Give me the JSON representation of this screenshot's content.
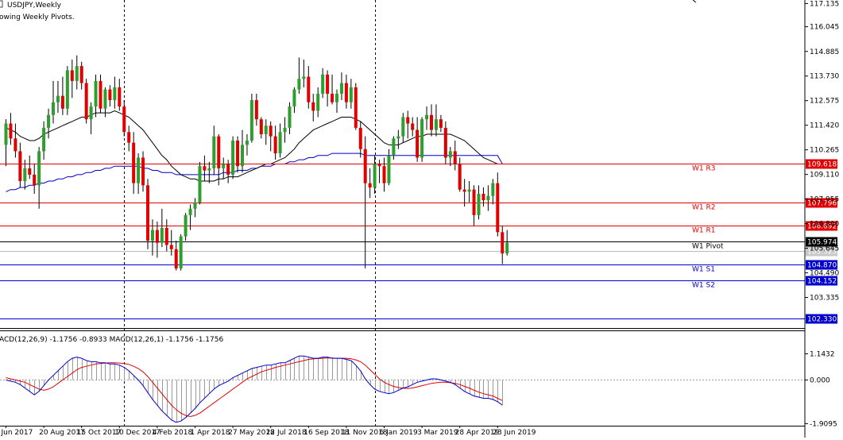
{
  "header": {
    "symbol": "USDJPY,Weekly",
    "indicator_name": "owing Weekly Pivots."
  },
  "macd_header": "ACD(12,26,9) -1.1756 -0.8933 MACD(12,26,1) -1.1756 -1.1756",
  "colors": {
    "bull": "#2e9e2e",
    "bear": "#e00000",
    "wick": "#000000",
    "ma_short": "#000000",
    "ma_long": "#0000cc",
    "resistance": "#e00000",
    "support": "#0000cc",
    "pivot": "#000000",
    "macd_signal": "#e00000",
    "macd_line": "#0000cc",
    "macd_hist": "#999999"
  },
  "chart_data": [
    {
      "type": "candlestick",
      "title": "USDJPY,Weekly",
      "y_axis": {
        "ylim": [
          101.9,
          117.3
        ],
        "ticks": [
          "117.135",
          "116.045",
          "114.885",
          "113.730",
          "112.575",
          "111.420",
          "110.265",
          "109.110",
          "107.955",
          "106.800",
          "105.645",
          "104.490",
          "103.335"
        ],
        "tick_values": [
          117.135,
          116.045,
          114.885,
          113.73,
          112.575,
          111.42,
          110.265,
          109.11,
          107.955,
          106.8,
          105.645,
          104.49,
          103.335
        ]
      },
      "x_axis": {
        "labels": [
          "Jun 2017",
          "20 Aug 2017",
          "15 Oct 2017",
          "10 Dec 2017",
          "4 Feb 2018",
          "1 Apr 2018",
          "27 May 2018",
          "22 Jul 2018",
          "16 Sep 2018",
          "11 Nov 2018",
          "6 Jan 2019",
          "3 Mar 2019",
          "28 Apr 2019",
          "23 Jun 2019"
        ],
        "label_bar_index": [
          0,
          8,
          16,
          24,
          32,
          40,
          48,
          56,
          64,
          72,
          80,
          88,
          96,
          104
        ]
      },
      "period_separators_bar_index": [
        25,
        78
      ],
      "candles": [
        [
          110.5,
          111.7,
          109.5,
          111.5
        ],
        [
          111.5,
          112.0,
          110.5,
          110.8
        ],
        [
          110.8,
          111.5,
          109.9,
          110.2
        ],
        [
          110.2,
          110.6,
          108.5,
          108.8
        ],
        [
          108.8,
          109.8,
          108.4,
          109.4
        ],
        [
          109.4,
          110.0,
          108.9,
          109.1
        ],
        [
          109.1,
          109.6,
          108.2,
          108.6
        ],
        [
          108.6,
          110.4,
          107.5,
          110.2
        ],
        [
          110.2,
          111.6,
          109.8,
          111.3
        ],
        [
          111.3,
          112.2,
          110.8,
          111.9
        ],
        [
          111.9,
          113.5,
          111.5,
          112.5
        ],
        [
          112.5,
          113.5,
          112.0,
          112.8
        ],
        [
          112.8,
          113.7,
          111.9,
          112.2
        ],
        [
          112.2,
          114.2,
          111.9,
          114.0
        ],
        [
          114.0,
          114.5,
          112.7,
          113.5
        ],
        [
          113.5,
          114.7,
          113.1,
          114.2
        ],
        [
          114.2,
          114.4,
          113.1,
          113.4
        ],
        [
          113.4,
          113.6,
          111.5,
          111.7
        ],
        [
          111.7,
          112.5,
          111.0,
          112.3
        ],
        [
          112.3,
          113.8,
          111.8,
          113.5
        ],
        [
          113.5,
          113.8,
          112.0,
          112.2
        ],
        [
          112.2,
          113.2,
          111.8,
          113.1
        ],
        [
          113.1,
          113.3,
          112.3,
          112.6
        ],
        [
          112.6,
          113.7,
          112.2,
          113.2
        ],
        [
          113.2,
          113.6,
          112.1,
          112.3
        ],
        [
          112.3,
          112.6,
          110.9,
          111.1
        ],
        [
          111.1,
          111.4,
          110.2,
          110.6
        ],
        [
          110.6,
          111.1,
          108.2,
          108.7
        ],
        [
          108.7,
          110.1,
          108.2,
          109.9
        ],
        [
          109.9,
          110.2,
          108.3,
          108.6
        ],
        [
          108.6,
          108.9,
          105.6,
          106.0
        ],
        [
          106.0,
          107.0,
          105.3,
          106.5
        ],
        [
          106.5,
          106.9,
          105.2,
          105.9
        ],
        [
          105.9,
          107.5,
          105.7,
          106.6
        ],
        [
          106.6,
          107.0,
          105.5,
          105.8
        ],
        [
          105.8,
          106.5,
          105.3,
          105.6
        ],
        [
          105.6,
          106.0,
          104.6,
          104.7
        ],
        [
          104.7,
          106.3,
          104.6,
          106.2
        ],
        [
          106.2,
          107.3,
          106.0,
          107.2
        ],
        [
          107.2,
          107.7,
          106.5,
          107.5
        ],
        [
          107.5,
          108.0,
          107.1,
          107.8
        ],
        [
          107.8,
          109.7,
          107.7,
          109.5
        ],
        [
          109.5,
          110.0,
          108.8,
          109.3
        ],
        [
          109.3,
          109.7,
          108.7,
          109.4
        ],
        [
          109.4,
          111.4,
          109.1,
          110.9
        ],
        [
          110.9,
          111.0,
          108.6,
          109.4
        ],
        [
          109.4,
          109.9,
          108.9,
          109.6
        ],
        [
          109.6,
          109.8,
          108.7,
          109.1
        ],
        [
          109.1,
          110.9,
          108.9,
          110.7
        ],
        [
          110.7,
          110.9,
          109.2,
          109.5
        ],
        [
          109.5,
          111.2,
          109.2,
          110.5
        ],
        [
          110.5,
          111.0,
          110.0,
          110.7
        ],
        [
          110.7,
          112.9,
          110.6,
          112.6
        ],
        [
          112.6,
          112.9,
          111.4,
          111.7
        ],
        [
          111.7,
          111.8,
          110.8,
          111.0
        ],
        [
          111.0,
          111.7,
          110.5,
          111.4
        ],
        [
          111.4,
          111.6,
          110.2,
          110.9
        ],
        [
          110.9,
          111.4,
          109.8,
          110.1
        ],
        [
          110.1,
          111.5,
          109.9,
          111.1
        ],
        [
          111.1,
          111.8,
          110.6,
          111.3
        ],
        [
          111.3,
          112.5,
          111.0,
          112.3
        ],
        [
          112.3,
          113.2,
          112.0,
          113.1
        ],
        [
          113.1,
          114.6,
          112.9,
          113.6
        ],
        [
          113.6,
          114.5,
          113.2,
          113.7
        ],
        [
          113.7,
          114.2,
          112.2,
          112.5
        ],
        [
          112.5,
          112.9,
          111.6,
          112.1
        ],
        [
          112.1,
          113.2,
          111.8,
          112.9
        ],
        [
          112.9,
          114.1,
          112.7,
          113.8
        ],
        [
          113.8,
          114.0,
          112.3,
          112.9
        ],
        [
          112.9,
          113.8,
          112.4,
          112.5
        ],
        [
          112.5,
          113.1,
          112.0,
          112.9
        ],
        [
          112.9,
          113.9,
          112.6,
          113.4
        ],
        [
          113.4,
          113.8,
          112.2,
          112.5
        ],
        [
          112.5,
          113.6,
          112.2,
          113.2
        ],
        [
          113.2,
          113.4,
          111.2,
          111.3
        ],
        [
          111.3,
          111.6,
          109.9,
          110.3
        ],
        [
          110.3,
          110.9,
          104.7,
          108.7
        ],
        [
          108.7,
          109.4,
          108.0,
          108.5
        ],
        [
          108.5,
          110.0,
          108.2,
          109.6
        ],
        [
          109.6,
          109.8,
          108.7,
          109.5
        ],
        [
          109.5,
          109.9,
          108.3,
          108.7
        ],
        [
          108.7,
          110.3,
          108.6,
          110.0
        ],
        [
          110.0,
          110.9,
          109.8,
          110.8
        ],
        [
          110.8,
          111.2,
          110.3,
          110.9
        ],
        [
          110.9,
          112.0,
          110.6,
          111.8
        ],
        [
          111.8,
          112.1,
          110.8,
          111.5
        ],
        [
          111.5,
          111.8,
          110.9,
          111.2
        ],
        [
          111.2,
          111.8,
          109.7,
          109.9
        ],
        [
          109.9,
          111.8,
          109.7,
          111.7
        ],
        [
          111.7,
          112.3,
          111.2,
          111.9
        ],
        [
          111.9,
          112.4,
          110.9,
          111.2
        ],
        [
          111.2,
          112.4,
          110.9,
          111.7
        ],
        [
          111.7,
          111.9,
          111.1,
          111.3
        ],
        [
          111.3,
          111.6,
          109.6,
          109.9
        ],
        [
          109.9,
          110.4,
          109.5,
          110.2
        ],
        [
          110.2,
          110.7,
          109.3,
          109.6
        ],
        [
          109.6,
          109.9,
          108.3,
          108.4
        ],
        [
          108.4,
          108.9,
          107.6,
          108.3
        ],
        [
          108.3,
          108.8,
          107.8,
          108.4
        ],
        [
          108.4,
          108.6,
          106.7,
          107.2
        ],
        [
          107.2,
          108.6,
          107.0,
          108.2
        ],
        [
          108.2,
          108.5,
          107.6,
          107.9
        ],
        [
          107.9,
          108.6,
          107.4,
          108.1
        ],
        [
          108.1,
          108.9,
          107.7,
          108.7
        ],
        [
          108.7,
          109.2,
          106.2,
          106.4
        ],
        [
          106.4,
          106.7,
          104.9,
          105.4
        ],
        [
          105.4,
          106.5,
          105.3,
          105.9
        ]
      ],
      "moving_averages": {
        "short": [
          111.3,
          111.2,
          111.1,
          110.9,
          110.8,
          110.7,
          110.7,
          110.8,
          111.0,
          111.1,
          111.2,
          111.3,
          111.4,
          111.5,
          111.6,
          111.7,
          111.8,
          111.8,
          111.9,
          112.0,
          112.0,
          112.0,
          112.0,
          112.1,
          112.0,
          111.9,
          111.8,
          111.6,
          111.4,
          111.2,
          110.9,
          110.6,
          110.3,
          110.0,
          109.8,
          109.5,
          109.3,
          109.1,
          109.0,
          108.9,
          108.9,
          108.8,
          108.8,
          108.8,
          108.8,
          108.9,
          108.9,
          109.0,
          109.0,
          109.0,
          109.1,
          109.2,
          109.3,
          109.4,
          109.5,
          109.6,
          109.6,
          109.7,
          109.8,
          109.9,
          110.1,
          110.3,
          110.6,
          110.8,
          111.0,
          111.2,
          111.3,
          111.4,
          111.5,
          111.6,
          111.7,
          111.8,
          111.8,
          111.8,
          111.7,
          111.6,
          111.4,
          111.2,
          111.0,
          110.8,
          110.6,
          110.5,
          110.5,
          110.5,
          110.6,
          110.7,
          110.8,
          110.9,
          110.9,
          111.0,
          111.0,
          111.0,
          111.0,
          111.0,
          111.0,
          110.9,
          110.8,
          110.7,
          110.5,
          110.3,
          110.1,
          109.9,
          109.8,
          109.7,
          109.6,
          109.6
        ],
        "long": [
          108.3,
          108.4,
          108.4,
          108.5,
          108.5,
          108.6,
          108.6,
          108.7,
          108.7,
          108.8,
          108.8,
          108.9,
          108.9,
          109.0,
          109.0,
          109.1,
          109.1,
          109.2,
          109.2,
          109.3,
          109.3,
          109.4,
          109.4,
          109.5,
          109.5,
          109.5,
          109.5,
          109.5,
          109.5,
          109.4,
          109.4,
          109.3,
          109.3,
          109.2,
          109.2,
          109.2,
          109.1,
          109.1,
          109.1,
          109.1,
          109.1,
          109.1,
          109.1,
          109.1,
          109.1,
          109.1,
          109.2,
          109.2,
          109.2,
          109.3,
          109.3,
          109.3,
          109.4,
          109.4,
          109.5,
          109.5,
          109.5,
          109.6,
          109.6,
          109.6,
          109.7,
          109.7,
          109.8,
          109.8,
          109.9,
          109.9,
          110.0,
          110.0,
          110.0,
          110.1,
          110.1,
          110.1,
          110.1,
          110.1,
          110.1,
          110.1,
          110.0,
          110.0,
          110.0,
          110.0,
          110.0,
          110.0,
          110.0,
          110.0,
          110.0,
          110.0,
          110.0,
          110.0,
          110.0,
          110.0,
          110.0,
          110.0,
          110.0,
          110.0,
          110.0,
          110.0,
          110.0,
          110.0,
          110.0,
          110.0,
          110.0,
          110.0,
          110.0,
          110.0,
          110.0,
          109.6
        ]
      },
      "pivot_levels": [
        {
          "name": "W1 R3",
          "value": 109.618,
          "price_label": "109.618",
          "type": "resistance"
        },
        {
          "name": "W1 R2",
          "value": 107.796,
          "price_label": "107.796",
          "type": "resistance"
        },
        {
          "name": "W1 R1",
          "value": 106.692,
          "price_label": "106.692",
          "type": "resistance"
        },
        {
          "name": "W1 Pivot",
          "value": 105.974,
          "price_label": "105.974",
          "type": "pivot"
        },
        {
          "name": "W1 S1",
          "value": 104.87,
          "price_label": "104.870",
          "type": "support"
        },
        {
          "name": "W1 S2",
          "value": 104.152,
          "price_label": "104.152",
          "type": "support"
        },
        {
          "name": "",
          "value": 102.33,
          "price_label": "102.330",
          "type": "support"
        }
      ],
      "current_price": 105.525,
      "current_price_label": "105.525"
    },
    {
      "type": "macd",
      "title": "ACD(12,26,9) -1.1756 -0.8933 MACD(12,26,1) -1.1756 -1.1756",
      "ylim": [
        -2.0,
        1.3
      ],
      "ticks": [
        "1.1432",
        "0.000",
        "-1.9095"
      ],
      "tick_values": [
        1.1432,
        0.0,
        -1.9095
      ],
      "macd_line": [
        0.0,
        -0.05,
        -0.1,
        -0.2,
        -0.35,
        -0.5,
        -0.65,
        -0.5,
        -0.25,
        0.0,
        0.2,
        0.4,
        0.6,
        0.8,
        0.95,
        1.0,
        0.95,
        0.85,
        0.8,
        0.8,
        0.75,
        0.75,
        0.7,
        0.7,
        0.65,
        0.55,
        0.4,
        0.2,
        0.0,
        -0.25,
        -0.55,
        -0.85,
        -1.1,
        -1.35,
        -1.55,
        -1.75,
        -1.85,
        -1.8,
        -1.65,
        -1.45,
        -1.25,
        -1.0,
        -0.8,
        -0.6,
        -0.4,
        -0.25,
        -0.15,
        -0.05,
        0.1,
        0.2,
        0.3,
        0.4,
        0.5,
        0.55,
        0.6,
        0.65,
        0.65,
        0.7,
        0.75,
        0.75,
        0.85,
        0.95,
        1.05,
        1.05,
        1.0,
        0.95,
        0.95,
        1.0,
        1.0,
        0.95,
        0.95,
        0.95,
        0.9,
        0.85,
        0.65,
        0.4,
        0.05,
        -0.2,
        -0.4,
        -0.5,
        -0.55,
        -0.6,
        -0.55,
        -0.45,
        -0.35,
        -0.3,
        -0.2,
        -0.1,
        -0.05,
        0.0,
        0.05,
        0.05,
        0.0,
        -0.05,
        -0.1,
        -0.2,
        -0.35,
        -0.5,
        -0.6,
        -0.7,
        -0.75,
        -0.8,
        -0.8,
        -0.85,
        -0.95,
        -1.1
      ],
      "signal_line": [
        0.1,
        0.05,
        0.0,
        -0.05,
        -0.1,
        -0.2,
        -0.3,
        -0.4,
        -0.45,
        -0.4,
        -0.3,
        -0.15,
        0.0,
        0.15,
        0.3,
        0.45,
        0.55,
        0.6,
        0.65,
        0.7,
        0.72,
        0.74,
        0.75,
        0.75,
        0.74,
        0.72,
        0.68,
        0.6,
        0.5,
        0.35,
        0.15,
        -0.1,
        -0.35,
        -0.6,
        -0.85,
        -1.1,
        -1.3,
        -1.45,
        -1.55,
        -1.6,
        -1.55,
        -1.45,
        -1.3,
        -1.15,
        -1.0,
        -0.85,
        -0.7,
        -0.55,
        -0.4,
        -0.25,
        -0.1,
        0.05,
        0.15,
        0.25,
        0.35,
        0.42,
        0.48,
        0.55,
        0.6,
        0.65,
        0.7,
        0.75,
        0.8,
        0.85,
        0.9,
        0.92,
        0.94,
        0.95,
        0.96,
        0.96,
        0.95,
        0.95,
        0.95,
        0.93,
        0.88,
        0.8,
        0.65,
        0.45,
        0.25,
        0.05,
        -0.1,
        -0.2,
        -0.28,
        -0.33,
        -0.36,
        -0.37,
        -0.35,
        -0.3,
        -0.25,
        -0.2,
        -0.15,
        -0.12,
        -0.1,
        -0.1,
        -0.12,
        -0.15,
        -0.2,
        -0.28,
        -0.35,
        -0.45,
        -0.53,
        -0.6,
        -0.65,
        -0.7,
        -0.8,
        -0.9
      ]
    }
  ]
}
